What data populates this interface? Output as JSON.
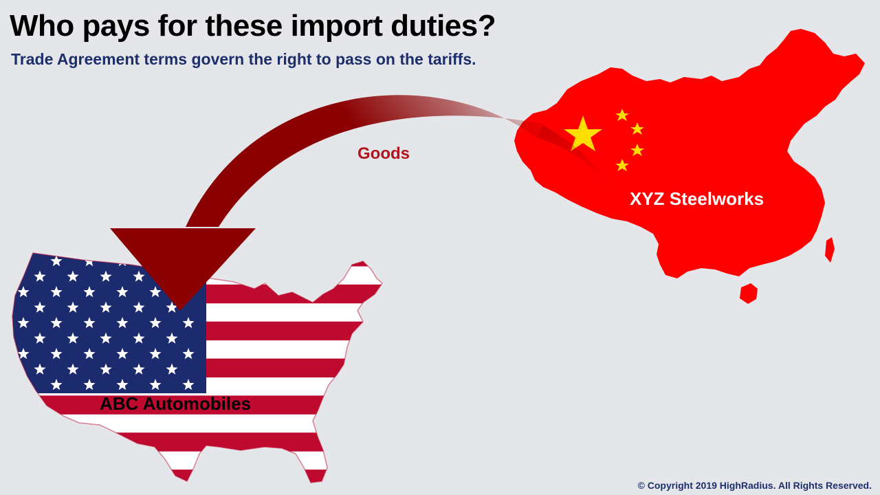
{
  "slide": {
    "title": "Who pays for these import duties?",
    "subtitle": "Trade Agreement terms govern the right to pass on the tariffs.",
    "copyright": "© Copyright 2019 HighRadius. All Rights Reserved."
  },
  "diagram": {
    "arrow_label": "Goods",
    "exporter_label": "XYZ Steelworks",
    "importer_label": "ABC Automobiles"
  },
  "colors": {
    "background": "#e4e6ea",
    "title": "#000000",
    "subtitle": "#1c2f6b",
    "arrow": "#8b0000",
    "goods_label": "#b0141c",
    "china_red": "#ff0000",
    "china_star": "#ffde00",
    "us_blue": "#1c2b6e",
    "us_red": "#bf0a30",
    "us_white": "#ffffff"
  }
}
